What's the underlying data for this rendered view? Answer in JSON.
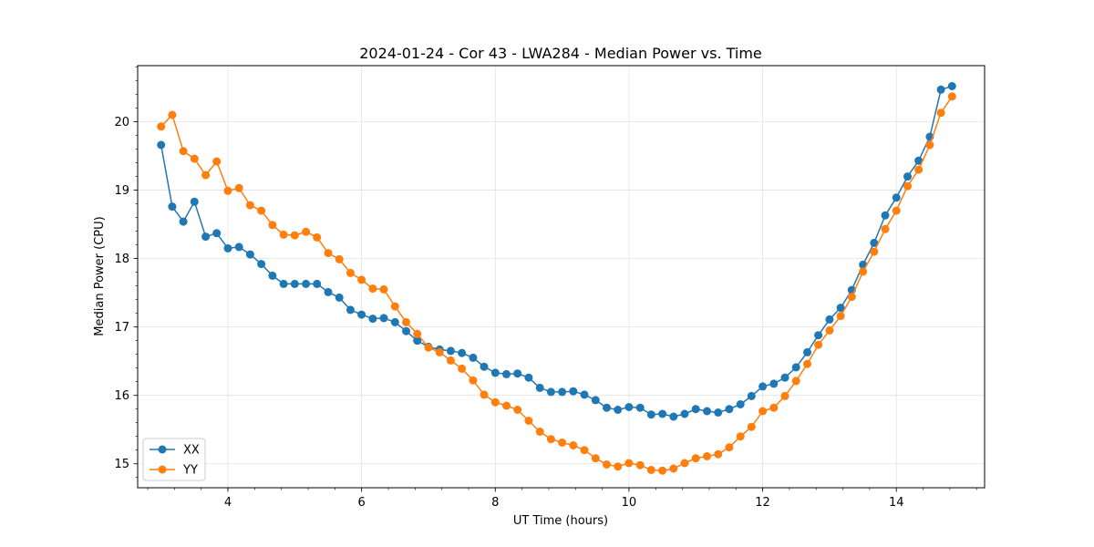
{
  "chart_data": {
    "type": "line",
    "title": "2024-01-24 - Cor 43 - LWA284 - Median Power vs. Time",
    "xlabel": "UT Time (hours)",
    "ylabel": "Median Power (CPU)",
    "xlim": [
      2.65,
      15.32
    ],
    "ylim": [
      14.65,
      20.82
    ],
    "xticks": [
      4,
      6,
      8,
      10,
      12,
      14
    ],
    "xtick_labels": [
      "4",
      "6",
      "8",
      "10",
      "12",
      "14"
    ],
    "yticks": [
      15,
      16,
      17,
      18,
      19,
      20
    ],
    "ytick_labels": [
      "15",
      "16",
      "17",
      "18",
      "19",
      "20"
    ],
    "grid": true,
    "legend_position": "lower-left",
    "x": [
      3.0,
      3.167,
      3.333,
      3.5,
      3.667,
      3.833,
      4.0,
      4.167,
      4.333,
      4.5,
      4.667,
      4.833,
      5.0,
      5.167,
      5.333,
      5.5,
      5.667,
      5.833,
      6.0,
      6.167,
      6.333,
      6.5,
      6.667,
      6.833,
      7.0,
      7.167,
      7.333,
      7.5,
      7.667,
      7.833,
      8.0,
      8.167,
      8.333,
      8.5,
      8.667,
      8.833,
      9.0,
      9.167,
      9.333,
      9.5,
      9.667,
      9.833,
      10.0,
      10.167,
      10.333,
      10.5,
      10.667,
      10.833,
      11.0,
      11.167,
      11.333,
      11.5,
      11.667,
      11.833,
      12.0,
      12.167,
      12.333,
      12.5,
      12.667,
      12.833,
      13.0,
      13.167,
      13.333,
      13.5,
      13.667,
      13.833,
      14.0,
      14.167,
      14.333,
      14.5,
      14.667,
      14.833
    ],
    "series": [
      {
        "name": "XX",
        "color": "#1f77b4",
        "values": [
          19.66,
          18.76,
          18.54,
          18.83,
          18.32,
          18.37,
          18.15,
          18.17,
          18.06,
          17.92,
          17.75,
          17.63,
          17.63,
          17.63,
          17.63,
          17.51,
          17.43,
          17.25,
          17.18,
          17.12,
          17.13,
          17.07,
          16.94,
          16.8,
          16.71,
          16.67,
          16.65,
          16.62,
          16.55,
          16.42,
          16.33,
          16.31,
          16.32,
          16.26,
          16.11,
          16.05,
          16.05,
          16.06,
          16.01,
          15.93,
          15.82,
          15.79,
          15.83,
          15.82,
          15.72,
          15.73,
          15.69,
          15.73,
          15.8,
          15.77,
          15.75,
          15.8,
          15.87,
          15.99,
          16.13,
          16.17,
          16.26,
          16.41,
          16.63,
          16.88,
          17.11,
          17.28,
          17.54,
          17.91,
          18.23,
          18.63,
          18.89,
          19.2,
          19.43,
          19.78,
          20.47,
          20.52
        ]
      },
      {
        "name": "YY",
        "color": "#ff7f0e",
        "values": [
          19.93,
          20.1,
          19.57,
          19.46,
          19.22,
          19.42,
          18.99,
          19.03,
          18.78,
          18.7,
          18.49,
          18.35,
          18.34,
          18.39,
          18.31,
          18.08,
          17.99,
          17.79,
          17.69,
          17.56,
          17.55,
          17.3,
          17.07,
          16.9,
          16.7,
          16.63,
          16.51,
          16.39,
          16.22,
          16.01,
          15.9,
          15.85,
          15.79,
          15.63,
          15.47,
          15.36,
          15.31,
          15.27,
          15.2,
          15.08,
          14.99,
          14.96,
          15.01,
          14.98,
          14.91,
          14.9,
          14.93,
          15.01,
          15.08,
          15.11,
          15.14,
          15.24,
          15.4,
          15.54,
          15.77,
          15.82,
          15.99,
          16.21,
          16.46,
          16.74,
          16.95,
          17.16,
          17.44,
          17.81,
          18.1,
          18.43,
          18.7,
          19.06,
          19.3,
          19.66,
          20.13,
          20.37
        ]
      }
    ]
  }
}
